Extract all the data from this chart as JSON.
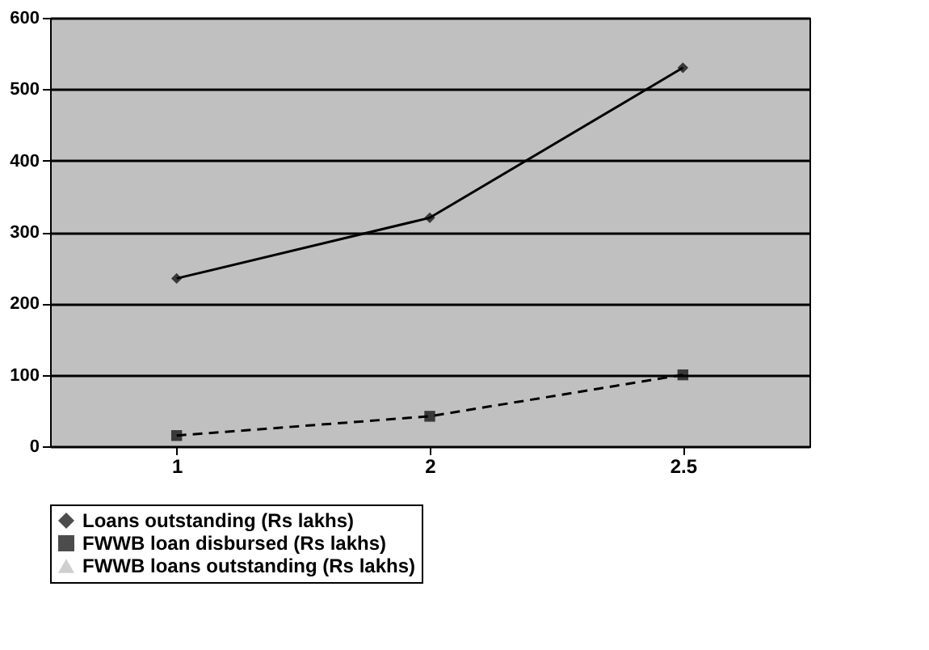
{
  "chart_data": {
    "type": "line",
    "categories": [
      "1",
      "2",
      "2.5"
    ],
    "series": [
      {
        "name": "Loans outstanding (Rs lakhs)",
        "color": "#000000",
        "values": [
          235,
          320,
          530
        ],
        "marker": "diamond",
        "line_style": "solid"
      },
      {
        "name": "FWWB loan disbursed (Rs lakhs)",
        "color": "#000000",
        "values": [
          15,
          42,
          100
        ],
        "marker": "square",
        "line_style": "dashed"
      },
      {
        "name": "FWWB loans outstanding (Rs lakhs)",
        "color": "#bbbbbb",
        "values": [
          null,
          null,
          null
        ],
        "marker": "triangle",
        "line_style": "solid"
      }
    ],
    "ylim": [
      0,
      600
    ],
    "yticks": [
      0,
      100,
      200,
      300,
      400,
      500,
      600
    ],
    "grid": "y",
    "legend": "bottom"
  }
}
